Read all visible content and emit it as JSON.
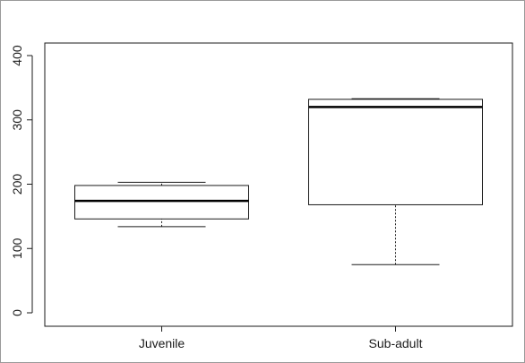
{
  "chart_data": {
    "type": "boxplot",
    "title": "",
    "xlabel": "",
    "ylabel": "",
    "ylim": [
      0,
      400
    ],
    "yticks": [
      0,
      100,
      200,
      300,
      400
    ],
    "grid": false,
    "categories": [
      "Juvenile",
      "Sub-adult"
    ],
    "boxes": [
      {
        "category": "Juvenile",
        "whisker_low": 134,
        "q1": 146,
        "median": 174,
        "q3": 198,
        "whisker_high": 203
      },
      {
        "category": "Sub-adult",
        "whisker_low": 75,
        "q1": 168,
        "median": 320,
        "q3": 332,
        "whisker_high": 333
      }
    ],
    "colors": {
      "stroke": "#1a1a1a",
      "median": "#000000",
      "box_fill": "#ffffff",
      "frame": "#9a9a9a"
    }
  }
}
